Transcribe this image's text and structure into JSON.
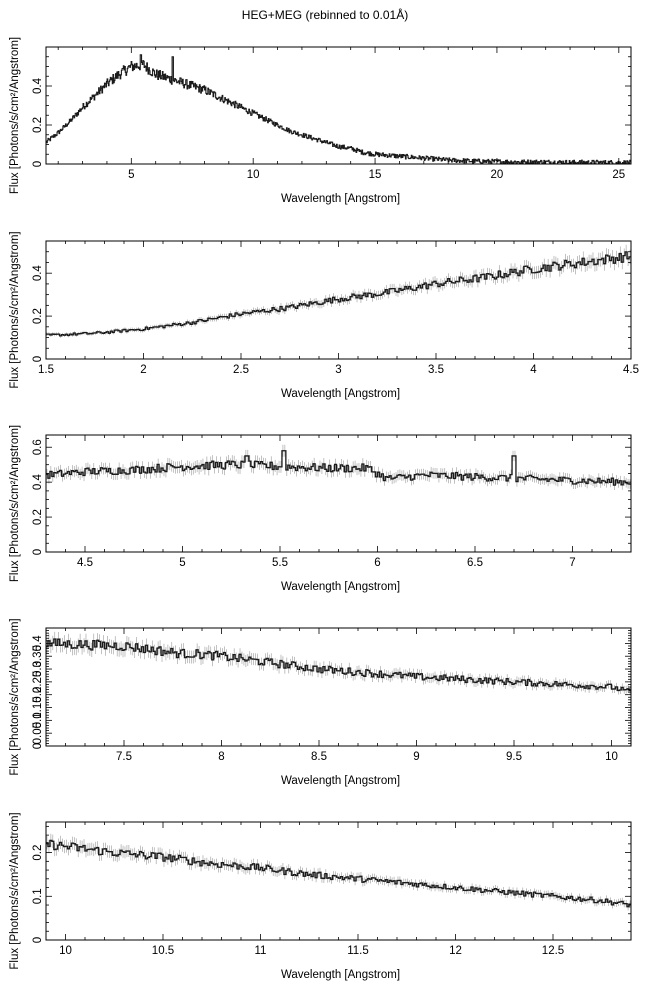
{
  "title": "HEG+MEG (rebinned to 0.01Å)",
  "colors": {
    "data": "#1a1a1a",
    "errorbar": "#9a9a9a",
    "axis": "#000000"
  },
  "chart_data": [
    {
      "type": "line",
      "title": "",
      "xlabel": "Wavelength [Angstrom]",
      "ylabel": "Flux [Photons/s/cm²/Angstrom]",
      "xlim": [
        1.5,
        25.5
      ],
      "ylim": [
        0,
        0.6
      ],
      "xticks": [
        5,
        10,
        15,
        20,
        25
      ],
      "xtick_labels": [
        "5",
        "10",
        "15",
        "20",
        "25"
      ],
      "yticks": [
        0,
        0.2,
        0.4
      ],
      "ytick_labels": [
        "0",
        "0.2",
        "0.4"
      ],
      "features": [
        [
          5.4,
          0.56
        ],
        [
          6.7,
          0.55
        ]
      ],
      "series": [
        {
          "x": [
            1.5,
            2,
            2.5,
            3,
            3.5,
            4,
            4.5,
            5,
            5.5,
            6,
            6.5,
            7,
            7.5,
            8,
            8.5,
            9,
            9.5,
            10,
            10.5,
            11,
            11.5,
            12,
            12.5,
            13,
            13.5,
            14,
            14.5,
            15,
            16,
            17,
            18,
            19,
            20,
            21,
            22,
            23,
            24,
            25,
            25.5
          ],
          "y": [
            0.11,
            0.16,
            0.22,
            0.29,
            0.35,
            0.41,
            0.46,
            0.5,
            0.51,
            0.46,
            0.44,
            0.42,
            0.4,
            0.38,
            0.35,
            0.32,
            0.29,
            0.26,
            0.23,
            0.2,
            0.17,
            0.15,
            0.13,
            0.11,
            0.09,
            0.08,
            0.06,
            0.05,
            0.04,
            0.03,
            0.02,
            0.015,
            0.012,
            0.01,
            0.01,
            0.008,
            0.008,
            0.007,
            0.007
          ]
        }
      ]
    },
    {
      "type": "line",
      "title": "",
      "xlabel": "Wavelength [Angstrom]",
      "ylabel": "Flux [Photons/s/cm²/Angstrom]",
      "xlim": [
        1.5,
        4.5
      ],
      "ylim": [
        0,
        0.55
      ],
      "xticks": [
        1.5,
        2,
        2.5,
        3,
        3.5,
        4,
        4.5
      ],
      "xtick_labels": [
        "1.5",
        "2",
        "2.5",
        "3",
        "3.5",
        "4",
        "4.5"
      ],
      "yticks": [
        0,
        0.2,
        0.4
      ],
      "ytick_labels": [
        "0",
        "0.2",
        "0.4"
      ],
      "features": [],
      "series": [
        {
          "x": [
            1.5,
            1.75,
            2,
            2.25,
            2.5,
            2.75,
            3,
            3.25,
            3.5,
            3.75,
            4,
            4.25,
            4.5
          ],
          "y": [
            0.11,
            0.12,
            0.14,
            0.17,
            0.21,
            0.24,
            0.28,
            0.31,
            0.35,
            0.38,
            0.42,
            0.45,
            0.48
          ]
        }
      ]
    },
    {
      "type": "line",
      "title": "",
      "xlabel": "Wavelength [Angstrom]",
      "ylabel": "Flux [Photons/s/cm²/Angstrom]",
      "xlim": [
        4.3,
        7.3
      ],
      "ylim": [
        0,
        0.67
      ],
      "xticks": [
        4.5,
        5,
        5.5,
        6,
        6.5,
        7
      ],
      "xtick_labels": [
        "4.5",
        "5",
        "5.5",
        "6",
        "6.5",
        "7"
      ],
      "yticks": [
        0,
        0.2,
        0.4,
        0.6
      ],
      "ytick_labels": [
        "0",
        "0.2",
        "0.4",
        "0.6"
      ],
      "features": [
        [
          5.33,
          0.55
        ],
        [
          5.52,
          0.58
        ],
        [
          6.7,
          0.55
        ]
      ],
      "series": [
        {
          "x": [
            4.3,
            4.5,
            4.75,
            5,
            5.25,
            5.5,
            5.75,
            5.95,
            6.05,
            6.25,
            6.5,
            6.75,
            7,
            7.3
          ],
          "y": [
            0.44,
            0.46,
            0.47,
            0.49,
            0.5,
            0.49,
            0.48,
            0.48,
            0.42,
            0.44,
            0.43,
            0.42,
            0.41,
            0.4
          ]
        }
      ]
    },
    {
      "type": "line",
      "title": "",
      "xlabel": "Wavelength [Angstrom]",
      "ylabel": "Flux [Photons/s/cm²/Angstrom]",
      "xlim": [
        7.1,
        10.1
      ],
      "ylim": [
        0,
        0.46
      ],
      "xticks": [
        7.5,
        8,
        8.5,
        9,
        9.5,
        10
      ],
      "xtick_labels": [
        "7.5",
        "8",
        "8.5",
        "9",
        "9.5",
        "10"
      ],
      "yticks": [
        0,
        0.05,
        0.1,
        0.15,
        0.2,
        0.25,
        0.3,
        0.35,
        0.4
      ],
      "ytick_labels": [
        "0",
        "0.05",
        "0.1",
        "0.15",
        "0.2",
        "0.25",
        "0.3",
        "0.35",
        "0.4"
      ],
      "features": [],
      "series": [
        {
          "x": [
            7.1,
            7.5,
            7.8,
            7.85,
            8,
            8.5,
            9,
            9.5,
            10,
            10.1
          ],
          "y": [
            0.4,
            0.39,
            0.36,
            0.36,
            0.35,
            0.3,
            0.27,
            0.25,
            0.23,
            0.21
          ]
        }
      ]
    },
    {
      "type": "line",
      "title": "",
      "xlabel": "Wavelength [Angstrom]",
      "ylabel": "Flux [Photons/s/cm²/Angstrom]",
      "xlim": [
        9.9,
        12.9
      ],
      "ylim": [
        0,
        0.27
      ],
      "xticks": [
        10,
        10.5,
        11,
        11.5,
        12,
        12.5
      ],
      "xtick_labels": [
        "10",
        "10.5",
        "11",
        "11.5",
        "12",
        "12.5"
      ],
      "yticks": [
        0,
        0.1,
        0.2
      ],
      "ytick_labels": [
        "0",
        "0.1",
        "0.2"
      ],
      "features": [],
      "series": [
        {
          "x": [
            9.9,
            10.25,
            10.5,
            10.75,
            11,
            11.25,
            11.5,
            11.75,
            12,
            12.25,
            12.5,
            12.75,
            12.9
          ],
          "y": [
            0.22,
            0.2,
            0.19,
            0.175,
            0.165,
            0.15,
            0.14,
            0.13,
            0.12,
            0.11,
            0.1,
            0.09,
            0.08
          ]
        }
      ]
    }
  ]
}
